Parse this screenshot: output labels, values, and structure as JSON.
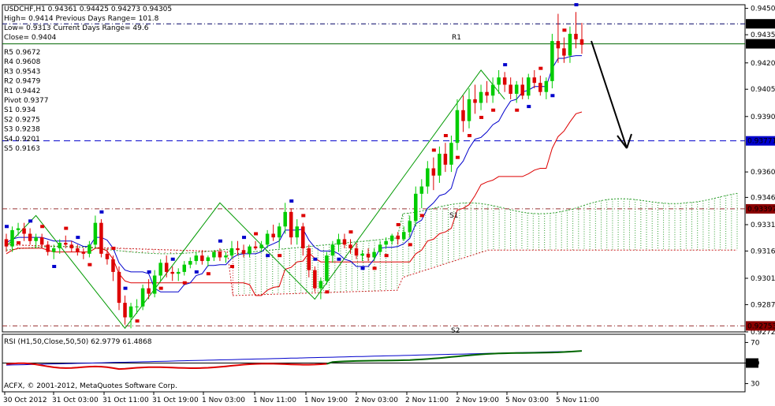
{
  "header": {
    "symbol_line": "USDCHF,H1  0.94361 0.94425 0.94273 0.94305",
    "high_line": "High= 0.9414    Previous Days Range= 101.8",
    "low_line": "Low= 0.9313    Current Days Range= 49.6",
    "close_line": "Close= 0.9404"
  },
  "pivot_levels": [
    "R5 0.9672",
    "R4 0.9608",
    "R3 0.9543",
    "R2 0.9479",
    "R1 0.9442",
    "Pivot 0.9377",
    "S1 0.934",
    "S2 0.9275",
    "S3 0.9238",
    "S4 0.9201",
    "S5 0.9163"
  ],
  "chart_labels": {
    "r1": "R1",
    "s1": "S1",
    "s2": "S2"
  },
  "rsi_title": "RSI (H1,50,Close,50,50) 62.9779 61.4868",
  "copyright": "ACFX, © 2001-2012, MetaQuotes Software Corp.",
  "colors": {
    "background": "#ffffff",
    "bull_candle": "#00cc00",
    "bear_candle": "#dd0000",
    "cloud_bull": "#2e9e2e",
    "cloud_bear": "#cc2222",
    "tenkan": "#0000cc",
    "kijun": "#dd0000",
    "label_box": "#000000",
    "label_box_red": "#8b0000",
    "rsi_line": "#006600",
    "rsi_signal": "#0000cc",
    "rsi_red": "#dd0000"
  },
  "chart_data": {
    "type": "candlestick",
    "symbol": "USDCHF",
    "timeframe": "H1",
    "x_ticks": [
      "30 Oct 2012",
      "31 Oct 03:00",
      "31 Oct 11:00",
      "31 Oct 19:00",
      "1 Nov 03:00",
      "1 Nov 11:00",
      "1 Nov 19:00",
      "2 Nov 03:00",
      "2 Nov 11:00",
      "2 Nov 19:00",
      "5 Nov 03:00",
      "5 Nov 11:00"
    ],
    "y_ticks": [
      "0.94500",
      "0.94355",
      "0.94200",
      "0.94055",
      "0.93905",
      "0.93600",
      "0.93460",
      "0.93310",
      "0.93165",
      "0.93015",
      "0.92870",
      "0.92720"
    ],
    "ylim": [
      0.9272,
      0.9452
    ],
    "price_labels": [
      {
        "label": "0.94415",
        "value": 0.94415,
        "style": "dark"
      },
      {
        "label": "0.94305",
        "value": 0.94305,
        "style": "dark"
      },
      {
        "label": "0.93771",
        "value": 0.93771,
        "style": "blue"
      },
      {
        "label": "0.93397",
        "value": 0.93397,
        "style": "red"
      },
      {
        "label": "0.92753",
        "value": 0.92753,
        "style": "red"
      }
    ],
    "hlines": [
      {
        "name": "R1",
        "value": 0.94415,
        "style": "dash-dot"
      },
      {
        "name": "Close",
        "value": 0.94305,
        "style": "solid"
      },
      {
        "name": "Pivot",
        "value": 0.93771,
        "style": "dash"
      },
      {
        "name": "S1",
        "value": 0.93397,
        "style": "dash-dot"
      },
      {
        "name": "S2",
        "value": 0.92753,
        "style": "dash-dot"
      }
    ],
    "candles": [
      [
        0.9323,
        0.9326,
        0.9316,
        0.9319
      ],
      [
        0.9319,
        0.933,
        0.9316,
        0.9328
      ],
      [
        0.9328,
        0.9332,
        0.9325,
        0.9329
      ],
      [
        0.9329,
        0.9332,
        0.9322,
        0.9326
      ],
      [
        0.9326,
        0.9329,
        0.932,
        0.9322
      ],
      [
        0.9322,
        0.9326,
        0.9318,
        0.9324
      ],
      [
        0.9324,
        0.9326,
        0.9318,
        0.932
      ],
      [
        0.932,
        0.9322,
        0.9314,
        0.9316
      ],
      [
        0.9316,
        0.932,
        0.9312,
        0.9318
      ],
      [
        0.9318,
        0.9323,
        0.9315,
        0.9321
      ],
      [
        0.9321,
        0.9325,
        0.9318,
        0.932
      ],
      [
        0.932,
        0.9322,
        0.9316,
        0.9318
      ],
      [
        0.9318,
        0.932,
        0.9314,
        0.9316
      ],
      [
        0.9316,
        0.9318,
        0.9312,
        0.9315
      ],
      [
        0.9315,
        0.9322,
        0.9313,
        0.932
      ],
      [
        0.932,
        0.9336,
        0.9318,
        0.9332
      ],
      [
        0.9332,
        0.9334,
        0.9313,
        0.9315
      ],
      [
        0.9315,
        0.9318,
        0.9309,
        0.9312
      ],
      [
        0.9312,
        0.9314,
        0.93,
        0.9305
      ],
      [
        0.9305,
        0.9308,
        0.9284,
        0.9288
      ],
      [
        0.9288,
        0.9292,
        0.9276,
        0.928
      ],
      [
        0.928,
        0.9288,
        0.9274,
        0.9286
      ],
      [
        0.9286,
        0.929,
        0.9282,
        0.9286
      ],
      [
        0.9286,
        0.9298,
        0.9284,
        0.9296
      ],
      [
        0.9296,
        0.9301,
        0.929,
        0.9293
      ],
      [
        0.9293,
        0.9306,
        0.9291,
        0.9303
      ],
      [
        0.9303,
        0.9312,
        0.93,
        0.931
      ],
      [
        0.931,
        0.9314,
        0.9302,
        0.9305
      ],
      [
        0.9305,
        0.9308,
        0.93,
        0.9304
      ],
      [
        0.9304,
        0.9307,
        0.93,
        0.9305
      ],
      [
        0.9305,
        0.9311,
        0.9303,
        0.9309
      ],
      [
        0.9309,
        0.9313,
        0.9307,
        0.9311
      ],
      [
        0.9311,
        0.9316,
        0.9309,
        0.9314
      ],
      [
        0.9314,
        0.9317,
        0.9309,
        0.9311
      ],
      [
        0.9311,
        0.9314,
        0.9308,
        0.9313
      ],
      [
        0.9313,
        0.9317,
        0.9311,
        0.9316
      ],
      [
        0.9316,
        0.9318,
        0.9311,
        0.9313
      ],
      [
        0.9313,
        0.9316,
        0.931,
        0.9314
      ],
      [
        0.9314,
        0.9322,
        0.9312,
        0.9318
      ],
      [
        0.9318,
        0.9322,
        0.9314,
        0.9317
      ],
      [
        0.9317,
        0.932,
        0.9313,
        0.9315
      ],
      [
        0.9315,
        0.932,
        0.9313,
        0.9319
      ],
      [
        0.9319,
        0.9322,
        0.9317,
        0.9318
      ],
      [
        0.9318,
        0.9322,
        0.9316,
        0.932
      ],
      [
        0.932,
        0.9328,
        0.9318,
        0.9326
      ],
      [
        0.9326,
        0.9331,
        0.9322,
        0.9324
      ],
      [
        0.9324,
        0.9332,
        0.9318,
        0.933
      ],
      [
        0.933,
        0.9343,
        0.9326,
        0.9338
      ],
      [
        0.9338,
        0.934,
        0.932,
        0.9324
      ],
      [
        0.9324,
        0.9334,
        0.932,
        0.933
      ],
      [
        0.933,
        0.9332,
        0.9314,
        0.9318
      ],
      [
        0.9318,
        0.932,
        0.9302,
        0.9306
      ],
      [
        0.9306,
        0.9308,
        0.9294,
        0.9296
      ],
      [
        0.9296,
        0.9302,
        0.929,
        0.93
      ],
      [
        0.93,
        0.9316,
        0.9298,
        0.9314
      ],
      [
        0.9314,
        0.9322,
        0.931,
        0.932
      ],
      [
        0.932,
        0.9326,
        0.9316,
        0.9323
      ],
      [
        0.9323,
        0.9326,
        0.9318,
        0.932
      ],
      [
        0.932,
        0.9323,
        0.9315,
        0.9318
      ],
      [
        0.9318,
        0.9321,
        0.9312,
        0.9314
      ],
      [
        0.9314,
        0.9317,
        0.9311,
        0.9315
      ],
      [
        0.9315,
        0.9318,
        0.9311,
        0.9313
      ],
      [
        0.9313,
        0.9318,
        0.9311,
        0.9316
      ],
      [
        0.9316,
        0.9322,
        0.9314,
        0.932
      ],
      [
        0.932,
        0.9324,
        0.9318,
        0.9322
      ],
      [
        0.9322,
        0.9326,
        0.932,
        0.9325
      ],
      [
        0.9325,
        0.9327,
        0.932,
        0.9323
      ],
      [
        0.9323,
        0.933,
        0.9322,
        0.9327
      ],
      [
        0.9327,
        0.9336,
        0.9324,
        0.9333
      ],
      [
        0.9333,
        0.9352,
        0.933,
        0.9348
      ],
      [
        0.9348,
        0.9356,
        0.934,
        0.9352
      ],
      [
        0.9352,
        0.9366,
        0.9348,
        0.9362
      ],
      [
        0.9362,
        0.9368,
        0.935,
        0.9358
      ],
      [
        0.9358,
        0.9374,
        0.9354,
        0.937
      ],
      [
        0.937,
        0.9376,
        0.936,
        0.9364
      ],
      [
        0.9364,
        0.938,
        0.936,
        0.9376
      ],
      [
        0.9376,
        0.94,
        0.9372,
        0.9394
      ],
      [
        0.9394,
        0.9402,
        0.9382,
        0.9388
      ],
      [
        0.9388,
        0.9406,
        0.9384,
        0.94
      ],
      [
        0.94,
        0.9408,
        0.9392,
        0.9398
      ],
      [
        0.9398,
        0.9408,
        0.9394,
        0.9404
      ],
      [
        0.9404,
        0.941,
        0.9398,
        0.9402
      ],
      [
        0.9402,
        0.9412,
        0.9398,
        0.9408
      ],
      [
        0.9408,
        0.9416,
        0.9403,
        0.9412
      ],
      [
        0.9412,
        0.9415,
        0.9404,
        0.9408
      ],
      [
        0.9408,
        0.9412,
        0.94,
        0.9403
      ],
      [
        0.9403,
        0.941,
        0.9398,
        0.9408
      ],
      [
        0.9408,
        0.9412,
        0.94,
        0.9402
      ],
      [
        0.9402,
        0.9414,
        0.94,
        0.9412
      ],
      [
        0.9412,
        0.9416,
        0.9406,
        0.9409
      ],
      [
        0.9409,
        0.9413,
        0.9402,
        0.9404
      ],
      [
        0.9404,
        0.9412,
        0.94,
        0.941
      ],
      [
        0.941,
        0.9436,
        0.9406,
        0.9432
      ],
      [
        0.9432,
        0.9447,
        0.942,
        0.9428
      ],
      [
        0.9428,
        0.9434,
        0.942,
        0.9424
      ],
      [
        0.9424,
        0.944,
        0.942,
        0.9436
      ],
      [
        0.9436,
        0.9448,
        0.9428,
        0.9433
      ],
      [
        0.9433,
        0.9442,
        0.9425,
        0.943
      ]
    ],
    "indicators": [
      "Ichimoku cloud (Senkou span A/B)",
      "Tenkan-sen (blue)",
      "Kijun-sen (red)",
      "Parabolic SAR markers",
      "ZigZag (green)",
      "Pivot points"
    ],
    "rsi": {
      "title": "RSI (H1,50,Close,50,50) 62.9779 61.4868",
      "y_ticks": [
        "70",
        "50",
        "30"
      ],
      "ylim": [
        22,
        78
      ],
      "level": 50,
      "rsi_value": 62.9779,
      "signal_value": 61.4868
    }
  }
}
